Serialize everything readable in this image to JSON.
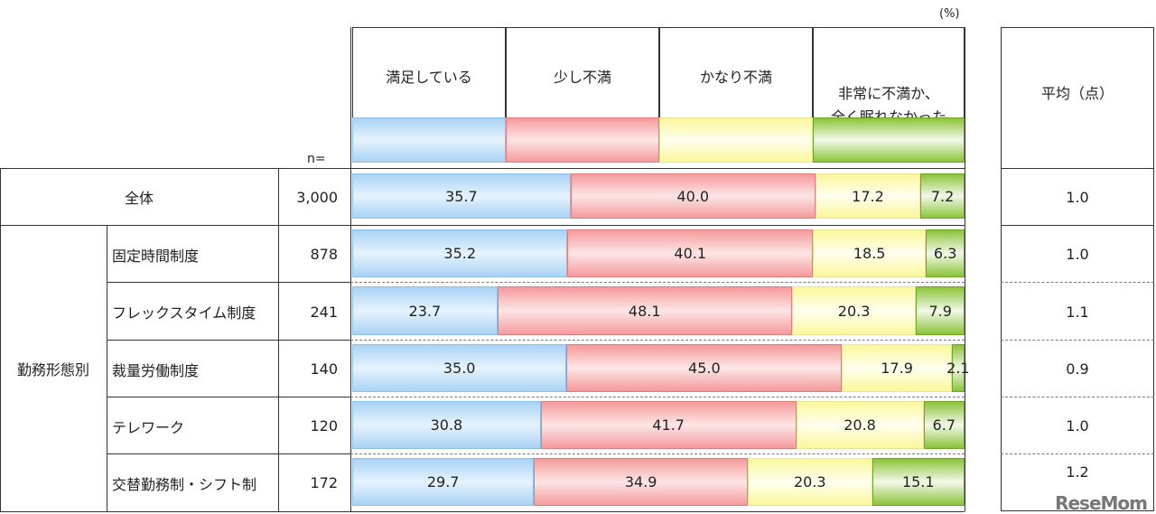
{
  "chart_data": {
    "type": "bar",
    "orientation": "horizontal-stacked",
    "unit_label": "(%)",
    "n_label": "n=",
    "avg_header": "平均（点）",
    "legend": [
      {
        "name": "満足している",
        "color": "#a9d3f5"
      },
      {
        "name": "少し不満",
        "color": "#f59a9c"
      },
      {
        "name": "かなり不満",
        "color": "#fbf79a"
      },
      {
        "name": "非常に不満か、全く眠れなかった",
        "line1": "非常に不満か、",
        "line2": "全く眠れなかった",
        "color": "#8cc43a"
      }
    ],
    "group_label": "勤務形態別",
    "rows": [
      {
        "label": "全体",
        "n": "3,000",
        "values": [
          35.7,
          40.0,
          17.2,
          7.2
        ],
        "labels": [
          "35.7",
          "40.0",
          "17.2",
          "7.2"
        ],
        "avg": "1.0"
      },
      {
        "label": "固定時間制度",
        "n": "878",
        "values": [
          35.2,
          40.1,
          18.5,
          6.3
        ],
        "labels": [
          "35.2",
          "40.1",
          "18.5",
          "6.3"
        ],
        "avg": "1.0"
      },
      {
        "label": "フレックスタイム制度",
        "n": "241",
        "values": [
          23.7,
          48.1,
          20.3,
          7.9
        ],
        "labels": [
          "23.7",
          "48.1",
          "20.3",
          "7.9"
        ],
        "avg": "1.1"
      },
      {
        "label": "裁量労働制度",
        "n": "140",
        "values": [
          35.0,
          45.0,
          17.9,
          2.1
        ],
        "labels": [
          "35.0",
          "45.0",
          "17.9",
          "2.1"
        ],
        "avg": "0.9"
      },
      {
        "label": "テレワーク",
        "n": "120",
        "values": [
          30.8,
          41.7,
          20.8,
          6.7
        ],
        "labels": [
          "30.8",
          "41.7",
          "20.8",
          "6.7"
        ],
        "avg": "1.0"
      },
      {
        "label": "交替勤務制・シフト制",
        "n": "172",
        "values": [
          29.7,
          34.9,
          20.3,
          15.1
        ],
        "labels": [
          "29.7",
          "34.9",
          "20.3",
          "15.1"
        ],
        "avg": "1.2"
      }
    ]
  },
  "watermark": "ReseMom"
}
